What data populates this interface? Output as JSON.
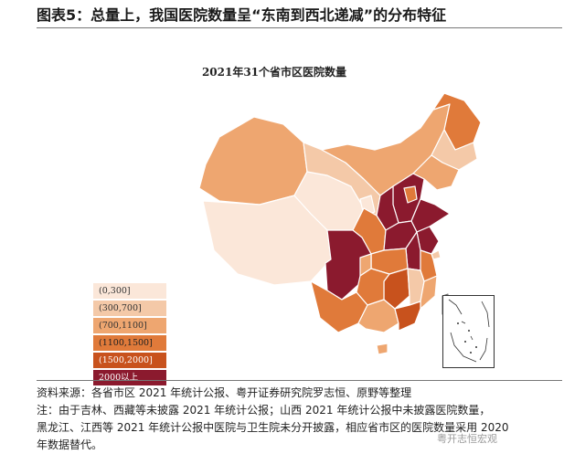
{
  "figure_title": "图表5：总量上，我国医院数量呈“东南到西北递减”的分布特征",
  "map_title": "2021年31个省市区医院数量",
  "legend": [
    {
      "label": "(0,300]",
      "color": "#fbe7d9",
      "text_color": "#333333"
    },
    {
      "label": "(300,700]",
      "color": "#f4c9a8",
      "text_color": "#333333"
    },
    {
      "label": "(700,1100]",
      "color": "#eea670",
      "text_color": "#333333"
    },
    {
      "label": "(1100,1500]",
      "color": "#e07a3a",
      "text_color": "#222222"
    },
    {
      "label": "(1500,2000]",
      "color": "#c8521d",
      "text_color": "#ffffff"
    },
    {
      "label": "2000以上",
      "color": "#8b1a2e",
      "text_color": "#ffffff"
    }
  ],
  "footer": {
    "source": "资料来源：各省市区 2021 年统计公报、粤开证券研究院罗志恒、原野等整理",
    "note1": "注：由于吉林、西藏等未披露 2021 年统计公报；山西 2021 年统计公报中未披露医院数量，",
    "note2": "黑龙江、江西等 2021 年统计公报中医院与卫生院未分开披露，相应省市区的医院数量采用 2020",
    "note3": "年数据替代。"
  },
  "watermark": "粤开志恒宏观"
}
